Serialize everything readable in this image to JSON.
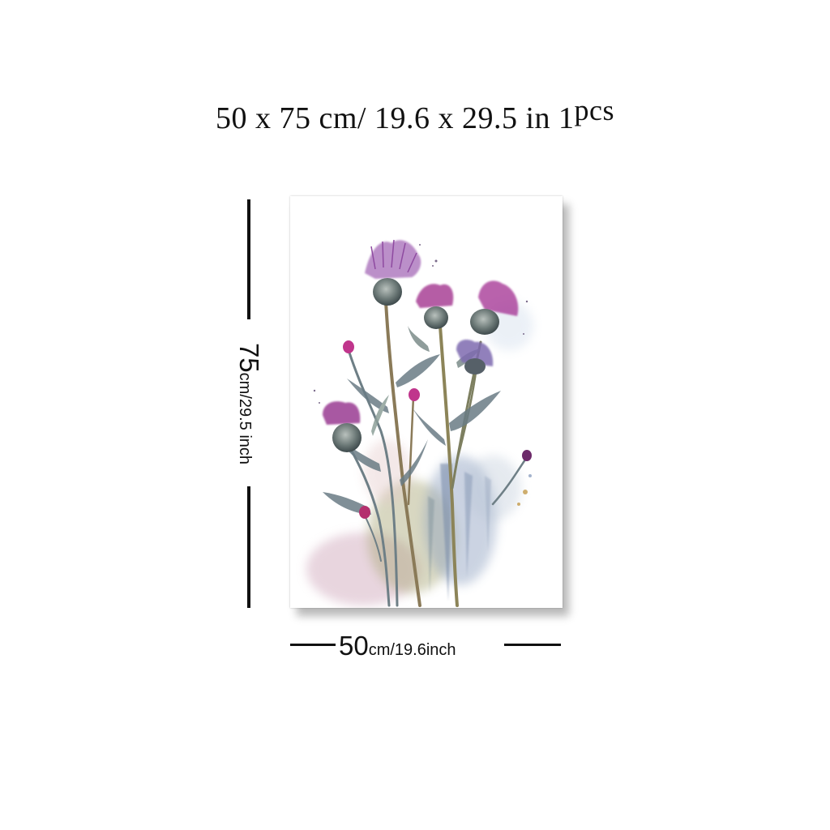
{
  "title": {
    "main": "50 x 75 cm/ 19.6  x  29.5 in",
    "count": "1",
    "unit": "pcs"
  },
  "dimensions": {
    "height_value": "75",
    "height_rest": "cm/29.5 inch",
    "width_value": "50",
    "width_rest": "cm/19.6inch"
  },
  "artwork": {
    "subject": "watercolor-thistles",
    "colors": {
      "bloom_magenta": "#a3358f",
      "bloom_violet": "#8e6fb0",
      "bud_gray": "#5d6a6b",
      "stem_gray": "#6e7f86",
      "wash_blue": "#8da0c0",
      "wash_olive": "#a9a878",
      "wash_pink": "#d6b3c4"
    }
  }
}
